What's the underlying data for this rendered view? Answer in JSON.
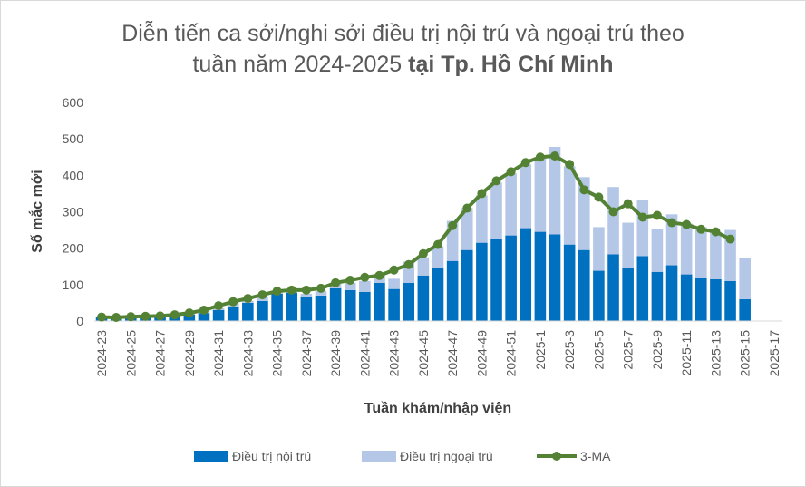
{
  "chart_data": {
    "type": "bar",
    "title_line1": "Diễn tiến ca sởi/nghi sởi điều trị nội trú và ngoại trú theo",
    "title_line2_normal": "tuần năm 2024-2025 ",
    "title_line2_bold": "tại Tp. Hồ Chí Minh",
    "xlabel": "Tuần khám/nhập viện",
    "ylabel": "Số mắc mới",
    "ylim": [
      0,
      600
    ],
    "yticks": [
      0,
      100,
      200,
      300,
      400,
      500,
      600
    ],
    "categories": [
      "2024-23",
      "2024-24",
      "2024-25",
      "2024-26",
      "2024-27",
      "2024-28",
      "2024-29",
      "2024-30",
      "2024-31",
      "2024-32",
      "2024-33",
      "2024-34",
      "2024-35",
      "2024-36",
      "2024-37",
      "2024-38",
      "2024-39",
      "2024-40",
      "2024-41",
      "2024-42",
      "2024-43",
      "2024-44",
      "2024-45",
      "2024-46",
      "2024-47",
      "2024-48",
      "2024-49",
      "2024-50",
      "2024-51",
      "2024-52",
      "2025-1",
      "2025-2",
      "2025-3",
      "2025-4",
      "2025-5",
      "2025-6",
      "2025-7",
      "2025-8",
      "2025-9",
      "2025-10",
      "2025-11",
      "2025-12",
      "2025-13",
      "2025-14",
      "2025-15",
      "2025-16",
      "2025-17"
    ],
    "tick_labels": [
      "2024-23",
      "2024-25",
      "2024-27",
      "2024-29",
      "2024-31",
      "2024-33",
      "2024-35",
      "2024-37",
      "2024-39",
      "2024-41",
      "2024-43",
      "2024-45",
      "2024-47",
      "2024-49",
      "2024-51",
      "2025-1",
      "2025-3",
      "2025-5",
      "2025-7",
      "2025-9",
      "2025-11",
      "2025-13",
      "2025-15",
      "2025-17"
    ],
    "stacked": true,
    "series": [
      {
        "name": "Điều trị nội trú",
        "kind": "bar",
        "color": "#0070c0",
        "values": [
          10,
          8,
          12,
          10,
          12,
          14,
          18,
          22,
          30,
          40,
          50,
          55,
          75,
          78,
          65,
          70,
          90,
          85,
          80,
          105,
          88,
          105,
          125,
          145,
          165,
          195,
          215,
          225,
          235,
          255,
          245,
          238,
          210,
          195,
          138,
          183,
          145,
          178,
          135,
          153,
          128,
          118,
          115,
          110,
          60,
          0,
          0
        ]
      },
      {
        "name": "Điều trị ngoại trú",
        "kind": "bar",
        "color": "#b4c7e7",
        "values": [
          3,
          3,
          2,
          3,
          2,
          2,
          4,
          8,
          5,
          8,
          5,
          10,
          7,
          8,
          10,
          12,
          15,
          20,
          30,
          25,
          28,
          58,
          50,
          60,
          110,
          115,
          130,
          155,
          170,
          175,
          205,
          240,
          215,
          200,
          120,
          185,
          125,
          155,
          118,
          140,
          140,
          140,
          130,
          140,
          112,
          0,
          0
        ]
      },
      {
        "name": "3-MA",
        "kind": "line",
        "color": "#548235",
        "values": [
          11,
          10,
          12,
          13,
          14,
          17,
          22,
          30,
          42,
          53,
          62,
          72,
          82,
          85,
          85,
          90,
          105,
          112,
          120,
          125,
          140,
          155,
          185,
          210,
          262,
          310,
          350,
          385,
          410,
          435,
          450,
          453,
          430,
          360,
          340,
          300,
          322,
          285,
          290,
          270,
          265,
          252,
          245,
          225,
          null,
          null,
          null
        ]
      }
    ],
    "legend": {
      "placement": "bottom",
      "items": [
        {
          "label": "Điều trị nội trú"
        },
        {
          "label": "Điều trị ngoại trú"
        },
        {
          "label": "3-MA"
        }
      ]
    },
    "grid": false
  }
}
